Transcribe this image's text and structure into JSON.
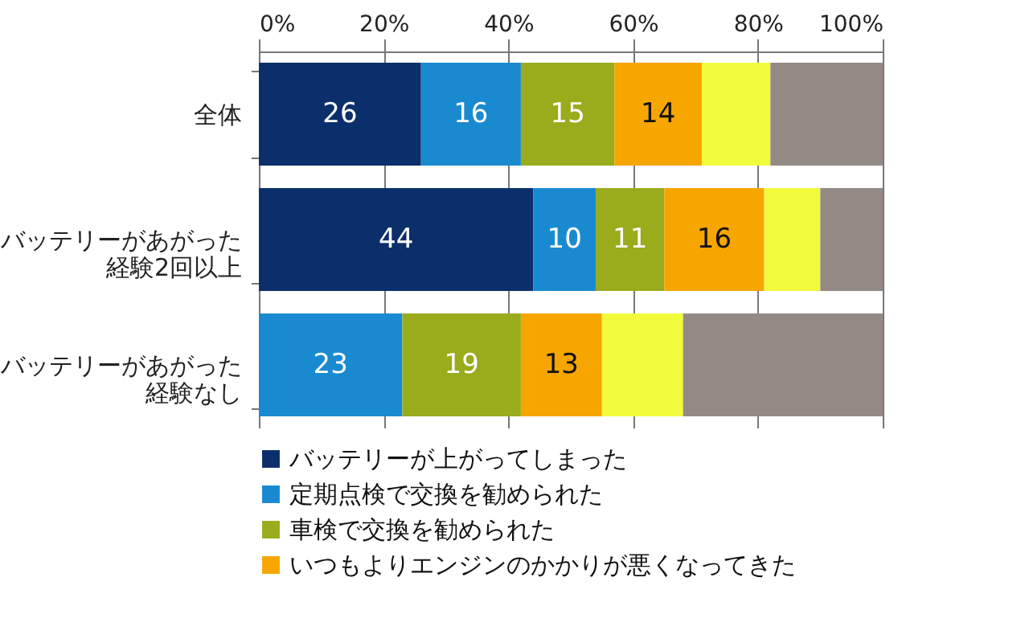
{
  "chart_data": {
    "type": "bar",
    "orientation": "horizontal",
    "stacked": true,
    "categories": [
      "全体",
      "バッテリーがあがった経験2回以上",
      "バッテリーがあがった経験なし"
    ],
    "series": [
      {
        "name": "バッテリーが上がってしまった",
        "color": "#0b2f6b",
        "values": [
          26,
          44,
          0
        ],
        "value_labels": [
          "26",
          "44",
          null
        ]
      },
      {
        "name": "定期点検で交換を勧められた",
        "color": "#1a8ad0",
        "values": [
          16,
          10,
          23
        ],
        "value_labels": [
          "16",
          "10",
          "23"
        ]
      },
      {
        "name": "車検で交換を勧められた",
        "color": "#9aab1c",
        "values": [
          15,
          11,
          19
        ],
        "value_labels": [
          "15",
          "11",
          "19"
        ]
      },
      {
        "name": "いつもよりエンジンのかかりが悪くなってきた",
        "color": "#f7a600",
        "values": [
          14,
          16,
          13
        ],
        "value_labels": [
          "14",
          "16",
          "13"
        ]
      },
      {
        "color": "#f2fb3c",
        "values": [
          11,
          9,
          13
        ]
      },
      {
        "color": "#948a85",
        "values": [
          18,
          10,
          32
        ]
      }
    ],
    "xlim": [
      0,
      100
    ],
    "xticks": [
      {
        "value": 0,
        "label": "0%"
      },
      {
        "value": 20,
        "label": "20%"
      },
      {
        "value": 40,
        "label": "40%"
      },
      {
        "value": 60,
        "label": "60%"
      },
      {
        "value": 80,
        "label": "80%"
      },
      {
        "value": 100,
        "label": "100%"
      }
    ],
    "grid": "x",
    "legend": "bottom"
  }
}
